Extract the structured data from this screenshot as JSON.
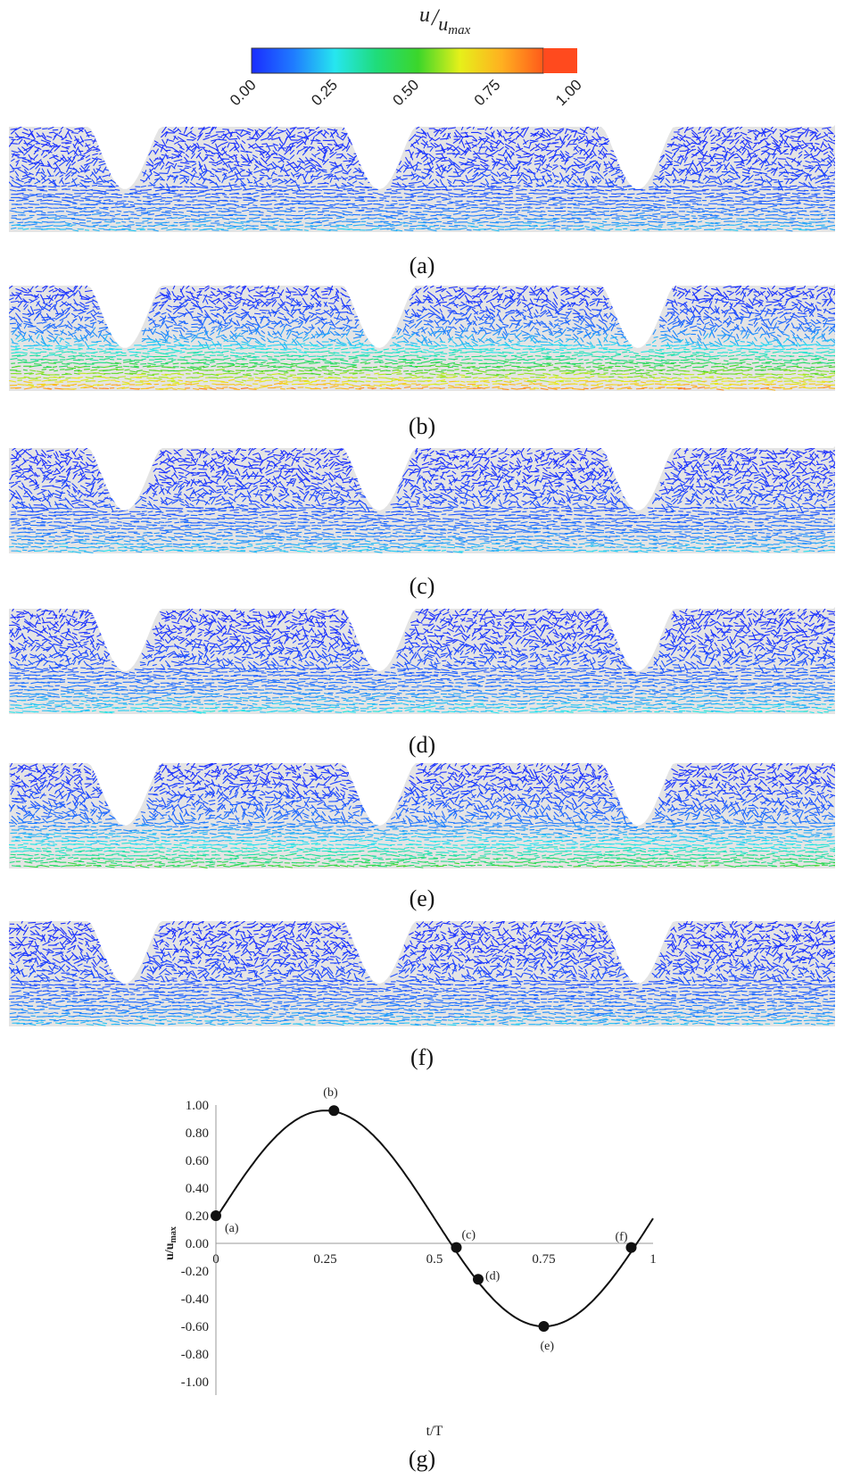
{
  "colorbar": {
    "title_main": "u",
    "title_sub": "u",
    "title_sub_script": "max",
    "ticks": [
      "0.00",
      "0.25",
      "0.50",
      "0.75",
      "1.00"
    ],
    "gradient_colors": [
      "#1a2cff",
      "#1f7bff",
      "#26e6ef",
      "#1fdc7a",
      "#3cd62a",
      "#e6f01a",
      "#ffb020",
      "#ff5a1a"
    ],
    "top_color": "#ff4a1e"
  },
  "panels": [
    {
      "id": "a",
      "caption": "(a)",
      "core_mean": 0.12,
      "core_max": 0.3
    },
    {
      "id": "b",
      "caption": "(b)",
      "core_mean": 0.55,
      "core_max": 0.98
    },
    {
      "id": "c",
      "caption": "(c)",
      "core_mean": 0.14,
      "core_max": 0.32
    },
    {
      "id": "d",
      "caption": "(d)",
      "core_mean": 0.16,
      "core_max": 0.36
    },
    {
      "id": "e",
      "caption": "(e)",
      "core_mean": 0.35,
      "core_max": 0.58
    },
    {
      "id": "f",
      "caption": "(f)",
      "core_mean": 0.13,
      "core_max": 0.3
    }
  ],
  "chart_caption": "(g)",
  "chart_data": {
    "type": "line",
    "xlabel": "t/T",
    "ylabel": "u/u",
    "ylabel_sub": "max",
    "xticks": [
      "0",
      "0.25",
      "0.5",
      "0.75",
      "1"
    ],
    "xtick_values": [
      0,
      0.25,
      0.5,
      0.75,
      1
    ],
    "yticks": [
      "1.00",
      "0.80",
      "0.60",
      "0.40",
      "0.20",
      "0.00",
      "-0.20",
      "-0.40",
      "-0.60",
      "-0.80",
      "-1.00"
    ],
    "ytick_values": [
      1.0,
      0.8,
      0.6,
      0.4,
      0.2,
      0.0,
      -0.2,
      -0.4,
      -0.6,
      -0.8,
      -1.0
    ],
    "xlim": [
      0,
      1
    ],
    "ylim": [
      -1.0,
      1.0
    ],
    "curve": {
      "amplitude": 0.78,
      "offset": 0.18,
      "phase_shift": 0.0,
      "x_max": 1.0
    },
    "points": [
      {
        "label": "(a)",
        "x": 0.0,
        "y": 0.2
      },
      {
        "label": "(b)",
        "x": 0.27,
        "y": 0.96
      },
      {
        "label": "(c)",
        "x": 0.55,
        "y": -0.03
      },
      {
        "label": "(d)",
        "x": 0.6,
        "y": -0.26
      },
      {
        "label": "(e)",
        "x": 0.75,
        "y": -0.6
      },
      {
        "label": "(f)",
        "x": 0.95,
        "y": -0.03
      }
    ]
  }
}
